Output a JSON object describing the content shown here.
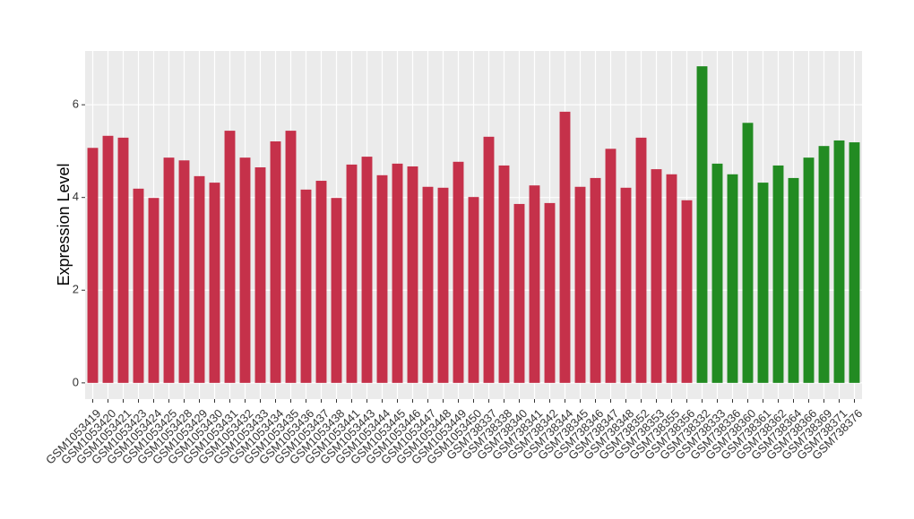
{
  "chart_data": {
    "type": "bar",
    "y_label": "Expression Level",
    "categories": [
      "GSM1053419",
      "GSM1053420",
      "GSM1053421",
      "GSM1053423",
      "GSM1053424",
      "GSM1053425",
      "GSM1053428",
      "GSM1053429",
      "GSM1053430",
      "GSM1053431",
      "GSM1053432",
      "GSM1053433",
      "GSM1053434",
      "GSM1053435",
      "GSM1053436",
      "GSM1053437",
      "GSM1053438",
      "GSM1053441",
      "GSM1053443",
      "GSM1053444",
      "GSM1053445",
      "GSM1053446",
      "GSM1053447",
      "GSM1053448",
      "GSM1053449",
      "GSM1053450",
      "GSM738337",
      "GSM738338",
      "GSM738340",
      "GSM738341",
      "GSM738342",
      "GSM738344",
      "GSM738345",
      "GSM738346",
      "GSM738347",
      "GSM738348",
      "GSM738352",
      "GSM738353",
      "GSM738355",
      "GSM738356",
      "GSM738332",
      "GSM738333",
      "GSM738336",
      "GSM738360",
      "GSM738361",
      "GSM738362",
      "GSM738364",
      "GSM738366",
      "GSM738369",
      "GSM738371",
      "GSM738376"
    ],
    "values": [
      5.07,
      5.33,
      5.29,
      4.19,
      3.99,
      4.86,
      4.8,
      4.46,
      4.32,
      5.44,
      4.86,
      4.65,
      5.21,
      5.44,
      4.17,
      4.36,
      3.99,
      4.71,
      4.88,
      4.48,
      4.73,
      4.67,
      4.23,
      4.21,
      4.77,
      4.01,
      5.31,
      4.69,
      3.86,
      4.26,
      3.88,
      5.85,
      4.23,
      4.42,
      5.05,
      4.21,
      5.29,
      4.61,
      4.5,
      3.94,
      6.83,
      4.73,
      4.5,
      5.61,
      4.32,
      4.69,
      4.42,
      4.86,
      5.11,
      5.23,
      5.19
    ],
    "colors": [
      "#c5314a",
      "#c5314a",
      "#c5314a",
      "#c5314a",
      "#c5314a",
      "#c5314a",
      "#c5314a",
      "#c5314a",
      "#c5314a",
      "#c5314a",
      "#c5314a",
      "#c5314a",
      "#c5314a",
      "#c5314a",
      "#c5314a",
      "#c5314a",
      "#c5314a",
      "#c5314a",
      "#c5314a",
      "#c5314a",
      "#c5314a",
      "#c5314a",
      "#c5314a",
      "#c5314a",
      "#c5314a",
      "#c5314a",
      "#c5314a",
      "#c5314a",
      "#c5314a",
      "#c5314a",
      "#c5314a",
      "#c5314a",
      "#c5314a",
      "#c5314a",
      "#c5314a",
      "#c5314a",
      "#c5314a",
      "#c5314a",
      "#c5314a",
      "#c5314a",
      "#228b22",
      "#228b22",
      "#228b22",
      "#228b22",
      "#228b22",
      "#228b22",
      "#228b22",
      "#228b22",
      "#228b22",
      "#228b22",
      "#228b22"
    ],
    "ylim": [
      -0.35,
      7.16
    ],
    "yticks": [
      0,
      2,
      4,
      6
    ],
    "grid": true
  }
}
